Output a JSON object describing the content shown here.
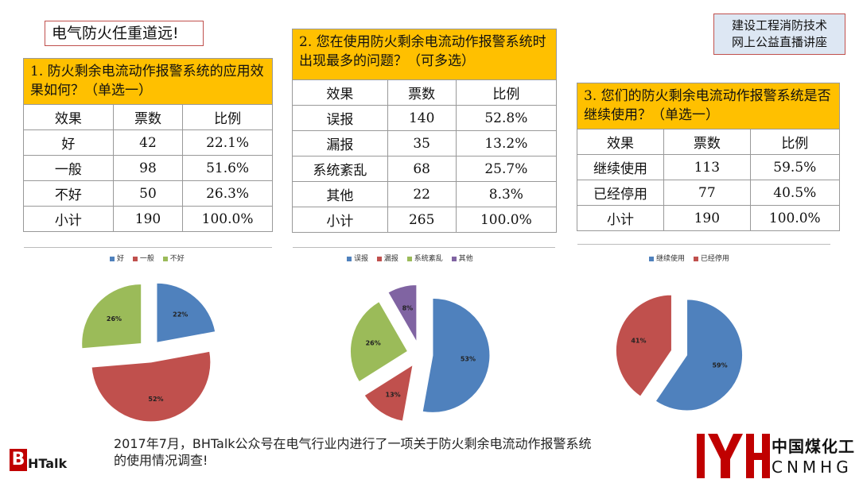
{
  "slogan": "电气防火任重道远!",
  "lecture": {
    "line1": "建设工程消防技术",
    "line2": "网上公益直播讲座"
  },
  "colors": {
    "title_fill": "#ffc000",
    "blue": "#4f81bd",
    "red": "#c0504d",
    "green": "#9bbb59",
    "purple": "#8064a2"
  },
  "chart_data": [
    {
      "type": "table",
      "title": "1. 防火剩余电流动作报警系统的应用效果如何？（单选一）",
      "headers": [
        "效果",
        "票数",
        "比例"
      ],
      "rows": [
        [
          "好",
          "42",
          "22.1%"
        ],
        [
          "一般",
          "98",
          "51.6%"
        ],
        [
          "不好",
          "50",
          "26.3%"
        ],
        [
          "小计",
          "190",
          "100.0%"
        ]
      ]
    },
    {
      "type": "table",
      "title": "2. 您在使用防火剩余电流动作报警系统时出现最多的问题？（可多选）",
      "headers": [
        "效果",
        "票数",
        "比例"
      ],
      "rows": [
        [
          "误报",
          "140",
          "52.8%"
        ],
        [
          "漏报",
          "35",
          "13.2%"
        ],
        [
          "系统紊乱",
          "68",
          "25.7%"
        ],
        [
          "其他",
          "22",
          "8.3%"
        ],
        [
          "小计",
          "265",
          "100.0%"
        ]
      ]
    },
    {
      "type": "table",
      "title": "3. 您们的防火剩余电流动作报警系统是否继续使用？（单选一）",
      "headers": [
        "效果",
        "票数",
        "比例"
      ],
      "rows": [
        [
          "继续使用",
          "113",
          "59.5%"
        ],
        [
          "已经停用",
          "77",
          "40.5%"
        ],
        [
          "小计",
          "190",
          "100.0%"
        ]
      ]
    },
    {
      "type": "pie",
      "labels": [
        "好",
        "一般",
        "不好"
      ],
      "values": [
        42,
        98,
        50
      ],
      "data_labels": [
        "22%",
        "52%",
        "26%"
      ],
      "colors": [
        "#4f81bd",
        "#c0504d",
        "#9bbb59"
      ],
      "legend": "top",
      "exploded": true
    },
    {
      "type": "pie",
      "labels": [
        "误报",
        "漏报",
        "系统紊乱",
        "其他"
      ],
      "values": [
        140,
        35,
        68,
        22
      ],
      "data_labels": [
        "53%",
        "13%",
        "26%",
        "8%"
      ],
      "colors": [
        "#4f81bd",
        "#c0504d",
        "#9bbb59",
        "#8064a2"
      ],
      "legend": "top",
      "exploded": true
    },
    {
      "type": "pie",
      "labels": [
        "继续使用",
        "已经停用"
      ],
      "values": [
        113,
        77
      ],
      "data_labels": [
        "59%",
        "41%"
      ],
      "colors": [
        "#4f81bd",
        "#c0504d"
      ],
      "legend": "top",
      "exploded": true
    }
  ],
  "footer": {
    "line1": "2017年7月，BHTalk公众号在电气行业内进行了一项关于防火剩余电流动作报警系统",
    "line2": "的使用情况调查!"
  },
  "logos": {
    "bhtalk_letter": "B",
    "bhtalk_rest": "HTalk",
    "cnmhg_cn": "中国煤化工",
    "cnmhg_en": "CNMHG"
  }
}
